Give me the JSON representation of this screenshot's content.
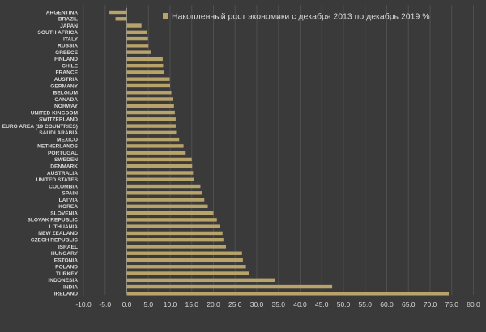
{
  "chart_data": {
    "type": "bar",
    "orientation": "horizontal",
    "title": "",
    "xlabel": "",
    "ylabel": "",
    "xlim": [
      -10,
      80
    ],
    "x_ticks": [
      "-10.0",
      "-5.0",
      "0.0",
      "5.0",
      "10.0",
      "15.0",
      "20.0",
      "25.0",
      "30.0",
      "35.0",
      "40.0",
      "45.0",
      "50.0",
      "55.0",
      "60.0",
      "65.0",
      "70.0",
      "75.0",
      "80.0"
    ],
    "grid": "vertical",
    "legend_position": "top-right",
    "categories": [
      "ARGENTINA",
      "BRAZIL",
      "JAPAN",
      "SOUTH AFRICA",
      "ITALY",
      "RUSSIA",
      "GREECE",
      "FINLAND",
      "CHILE",
      "FRANCE",
      "AUSTRIA",
      "GERMANY",
      "BELGIUM",
      "CANADA",
      "NORWAY",
      "UNITED KINGDOM",
      "SWITZERLAND",
      "EURO AREA (19 COUNTRIES)",
      "SAUDI ARABIA",
      "MEXICO",
      "NETHERLANDS",
      "PORTUGAL",
      "SWEDEN",
      "DENMARK",
      "AUSTRALIA",
      "UNITED STATES",
      "COLOMBIA",
      "SPAIN",
      "LATVIA",
      "KOREA",
      "SLOVENIA",
      "SLOVAK REPUBLIC",
      "LITHUANIA",
      "NEW ZEALAND",
      "CZECH REPUBLIC",
      "ISRAEL",
      "HUNGARY",
      "ESTONIA",
      "POLAND",
      "TURKEY",
      "INDONESIA",
      "INDIA",
      "IRELAND"
    ],
    "series": [
      {
        "name": "Накопленный рост экономики с декабря 2013 по декабрь 2019 %",
        "color": "#b8a46a",
        "values": [
          -4.0,
          -2.6,
          3.4,
          4.7,
          4.9,
          5.0,
          5.5,
          8.3,
          8.4,
          8.6,
          9.9,
          10.0,
          10.3,
          10.7,
          10.9,
          11.1,
          11.3,
          11.3,
          11.4,
          12.1,
          13.1,
          13.6,
          15.0,
          15.1,
          15.3,
          15.5,
          17.0,
          17.4,
          17.9,
          18.7,
          20.0,
          20.8,
          21.4,
          22.1,
          22.3,
          22.9,
          26.6,
          26.8,
          27.5,
          28.3,
          34.2,
          47.4,
          74.3
        ]
      }
    ]
  }
}
